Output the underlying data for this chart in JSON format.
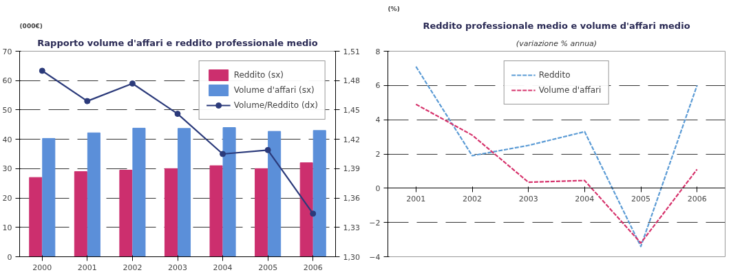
{
  "chart_data": [
    {
      "type": "bar",
      "title": "Rapporto volume d'affari e reddito professionale medio",
      "ylabel": "(000€)",
      "categories": [
        "2000",
        "2001",
        "2002",
        "2003",
        "2004",
        "2005",
        "2006"
      ],
      "series": [
        {
          "name": "Reddito (sx)",
          "type": "bar",
          "color": "#cc2f6e",
          "values": [
            27,
            29,
            29.5,
            30,
            31,
            30,
            32
          ]
        },
        {
          "name": "Volume d'affari (sx)",
          "type": "bar",
          "color": "#5b8fd9",
          "values": [
            40.3,
            42.2,
            43.8,
            43.7,
            44,
            42.7,
            43
          ]
        },
        {
          "name": "Volume/Reddito (dx)",
          "type": "line",
          "axis": "y2",
          "marker": "circle",
          "color": "#2b3a7a",
          "values": [
            1.49,
            1.459,
            1.477,
            1.446,
            1.405,
            1.409,
            1.344
          ]
        }
      ],
      "ylim": [
        0,
        70
      ],
      "yticks": [
        0,
        10,
        20,
        30,
        40,
        50,
        60,
        70
      ],
      "y2lim": [
        1.3,
        1.51
      ],
      "y2ticks": [
        {
          "value": 1.3,
          "label": "1,30"
        },
        {
          "value": 1.33,
          "label": "1,33"
        },
        {
          "value": 1.36,
          "label": "1,36"
        },
        {
          "value": 1.39,
          "label": "1,39"
        },
        {
          "value": 1.42,
          "label": "1,42"
        },
        {
          "value": 1.45,
          "label": "1,45"
        },
        {
          "value": 1.48,
          "label": "1,48"
        },
        {
          "value": 1.51,
          "label": "1,51"
        }
      ],
      "grid": "y",
      "legend": "top right"
    },
    {
      "type": "line",
      "title": "Reddito professionale medio e volume d'affari medio",
      "subtitle": "(variazione % annua)",
      "ylabel": "(%)",
      "categories": [
        "2001",
        "2002",
        "2003",
        "2004",
        "2005",
        "2006"
      ],
      "series": [
        {
          "name": "Reddito",
          "color": "#5b9bd5",
          "values": [
            7.1,
            1.9,
            2.5,
            3.3,
            -3.4,
            6.0
          ]
        },
        {
          "name": "Volume d'affari",
          "color": "#d6336c",
          "values": [
            4.9,
            3.1,
            0.35,
            0.45,
            -3.2,
            1.1
          ]
        }
      ],
      "ylim": [
        -4,
        8
      ],
      "yticks": [
        -4,
        -2,
        0,
        2,
        4,
        6,
        8
      ],
      "line_style": "dashed",
      "grid": "y",
      "legend": "top"
    }
  ]
}
